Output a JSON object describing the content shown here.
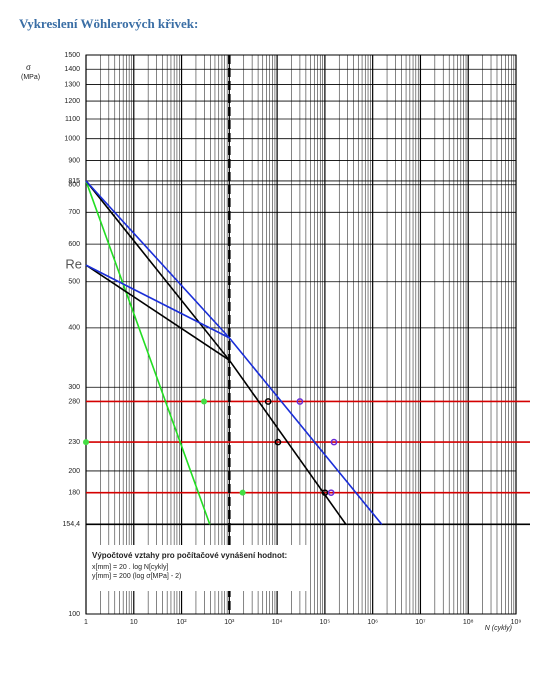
{
  "page_title": "Vykreslení Wöhlerových křivek:",
  "chart_data": {
    "type": "line",
    "y_label": "σ",
    "y_unit": "(MPa)",
    "x_label": "N (cykly)",
    "xscale": "log",
    "yscale": "log",
    "xlim": [
      1,
      1000000000
    ],
    "ylim": [
      100,
      1500
    ],
    "xticks": [
      1,
      10,
      {
        "value": 100,
        "label": "10²"
      },
      {
        "value": 1000,
        "label": "10³"
      },
      {
        "value": 10000,
        "label": "10⁴"
      },
      {
        "value": 100000,
        "label": "10⁵"
      },
      {
        "value": 1000000,
        "label": "10⁶"
      },
      {
        "value": 10000000,
        "label": "10⁷"
      },
      {
        "value": 100000000,
        "label": "10⁸"
      },
      {
        "value": 1000000000,
        "label": "10⁹"
      }
    ],
    "yticks": [
      100,
      {
        "value": 154.4,
        "label": "154,4"
      },
      180,
      200,
      230,
      280,
      300,
      400,
      500,
      600,
      700,
      800,
      815,
      900,
      1000,
      1100,
      1200,
      1300,
      1400,
      1500
    ],
    "re_tick": {
      "value": 542,
      "label": "Re"
    },
    "grid": true,
    "reference_lines": [
      {
        "value": 280,
        "color": "#d40000"
      },
      {
        "value": 230,
        "color": "#d40000"
      },
      {
        "value": 180,
        "color": "#d40000"
      },
      {
        "value": 154.4,
        "color": "#000000"
      }
    ],
    "vline": {
      "value": 1000,
      "dashed": true
    },
    "series": [
      {
        "style": "line",
        "color": "#22dd22",
        "x": [
          1,
          390
        ],
        "values": [
          815,
          154.4
        ]
      },
      {
        "style": "line",
        "color": "#000000",
        "x": [
          1,
          1000,
          275000
        ],
        "values": [
          815,
          342,
          154.4
        ]
      },
      {
        "style": "line",
        "color": "#000000",
        "x": [
          1,
          1000
        ],
        "values": [
          542,
          342
        ]
      },
      {
        "style": "line",
        "color": "#1a2ed8",
        "x": [
          1,
          1000,
          1550000
        ],
        "values": [
          815,
          381,
          154.4
        ]
      },
      {
        "style": "line",
        "color": "#1a2ed8",
        "x": [
          1,
          1000
        ],
        "values": [
          542,
          381
        ]
      },
      {
        "style": "dot",
        "color": "#44dd44",
        "x": [
          1,
          295,
          1900
        ],
        "values": [
          230,
          280,
          180
        ]
      },
      {
        "style": "circle",
        "color": "#000000",
        "x": [
          6500,
          10400,
          100000
        ],
        "values": [
          280,
          230,
          180
        ]
      },
      {
        "style": "circle",
        "color": "#6a2ad8",
        "x": [
          30000,
          155000,
          135000
        ],
        "values": [
          280,
          230,
          180
        ]
      }
    ],
    "formula_box": {
      "heading": "Výpočtové vztahy pro počítačové vynášení hodnot:",
      "lines": [
        "x[mm] = 20 . log N[cykly]",
        "y[mm] = 200 (log σ[MPa] - 2)"
      ]
    }
  }
}
